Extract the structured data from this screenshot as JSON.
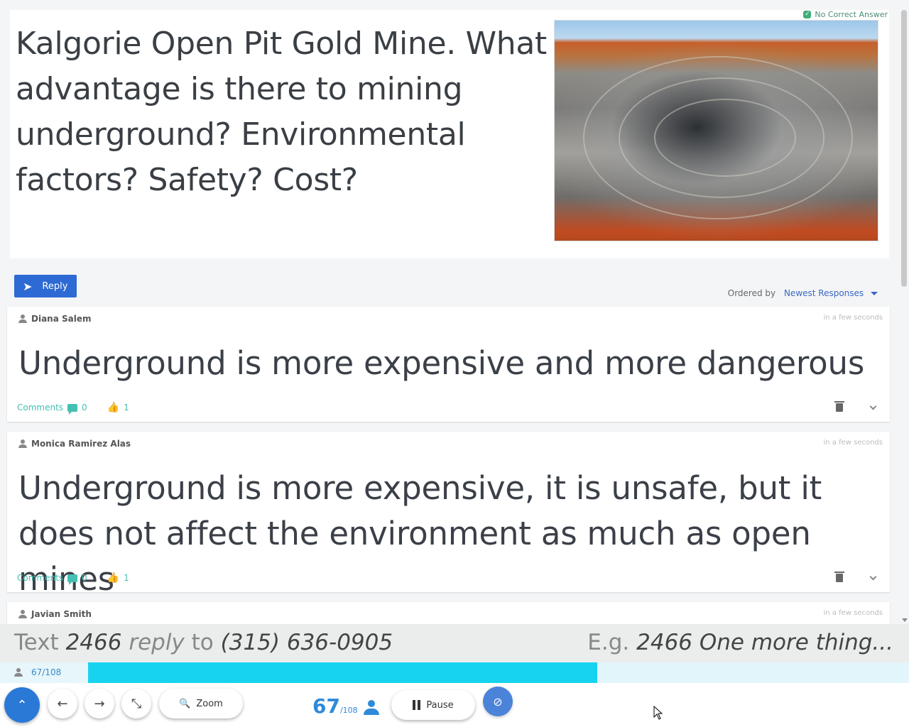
{
  "question": {
    "text": "Kalgorie Open Pit Gold Mine.  What advantage is there to mining underground?  Environmental factors? Safety? Cost?",
    "badge": "No Correct Answer",
    "photo_icon": "open-pit-mine-photo"
  },
  "reply_label": "Reply",
  "ordering": {
    "label": "Ordered by",
    "value": "Newest Responses"
  },
  "responses": [
    {
      "author": "Diana Salem",
      "time": "in a few seconds",
      "text": "Underground is more expensive and more dangerous",
      "comments_label": "Comments",
      "comments_count": "0",
      "likes": "1"
    },
    {
      "author": "Monica Ramirez Alas",
      "time": "in a few seconds",
      "text": "Underground is more expensive, it is unsafe, but it does not affect the environment as much as open mines",
      "comments_label": "Comments",
      "comments_count": "0",
      "likes": "1"
    },
    {
      "author": "Javian Smith",
      "time": "in a few seconds"
    }
  ],
  "text_prompt": {
    "prefix": "Text",
    "code": "2466",
    "reply": "reply",
    "to": "to",
    "phone": "(315) 636-0905",
    "example_prefix": "E.g.",
    "example": "2466 One more thing..."
  },
  "progress": {
    "count": "67/108",
    "fraction": 0.62
  },
  "toolbar": {
    "zoom_label": "Zoom",
    "responded": "67",
    "total": "/108",
    "pause_label": "Pause"
  },
  "colors": {
    "accent": "#2d6ad3",
    "progress": "#18d3ef",
    "teal": "#44c0b3"
  }
}
